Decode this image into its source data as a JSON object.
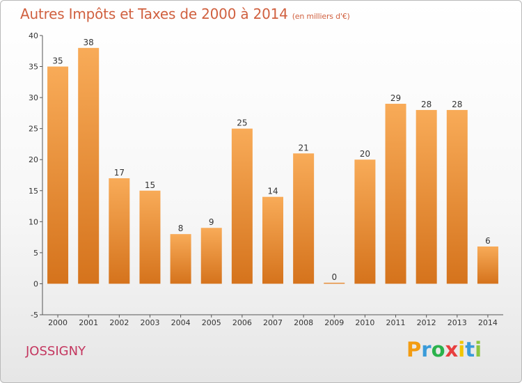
{
  "header": {
    "title": "Autres Impôts et Taxes de 2000 à 2014",
    "unit": "(en milliers d'€)"
  },
  "commune": "JOSSIGNY",
  "logo": {
    "letters": [
      "P",
      "r",
      "o",
      "x",
      "i",
      "t",
      "i"
    ],
    "colors": [
      "#f39c12",
      "#3a9bd9",
      "#2bb24c",
      "#e83f3f",
      "#f2c500",
      "#3a9bd9",
      "#8cc63f"
    ]
  },
  "colors": {
    "bar_light": "#f8ab58",
    "bar_dark": "#d5731c",
    "axis": "#555555",
    "grid": "#bbbbbb"
  },
  "chart_data": {
    "type": "bar",
    "title": "Autres Impôts et Taxes de 2000 à 2014",
    "categories": [
      "2000",
      "2001",
      "2002",
      "2003",
      "2004",
      "2005",
      "2006",
      "2007",
      "2008",
      "2009",
      "2010",
      "2011",
      "2012",
      "2013",
      "2014"
    ],
    "values": [
      35,
      38,
      17,
      15,
      8,
      9,
      25,
      14,
      21,
      0,
      20,
      29,
      28,
      28,
      6
    ],
    "ylim": [
      -5,
      40
    ],
    "yticks": [
      -5,
      0,
      5,
      10,
      15,
      20,
      25,
      30,
      35,
      40
    ],
    "grid": false,
    "data_labels": true
  }
}
